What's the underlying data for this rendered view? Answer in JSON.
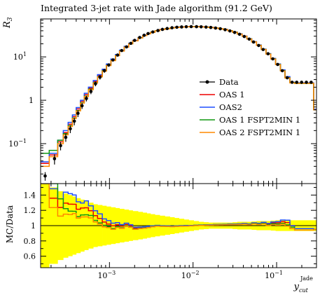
{
  "chart_data": {
    "type": "line",
    "title": "Integrated 3-jet rate with Jade algorithm (91.2 GeV)",
    "xlabel_main": "y",
    "xlabel_sub": "cut",
    "xlabel_sup": "Jade",
    "ylabel_top": "R",
    "ylabel_top_sub": "3",
    "ylabel_ratio": "MC/Data",
    "x_scale": "log",
    "y_scale_top": "log",
    "xlim": [
      0.00015,
      0.3
    ],
    "ylim_top": [
      0.012,
      75
    ],
    "ylim_ratio": [
      0.45,
      1.55
    ],
    "x_ticks": [
      {
        "value": 0.001,
        "base": "10",
        "exp": "−3"
      },
      {
        "value": 0.01,
        "base": "10",
        "exp": "−2"
      },
      {
        "value": 0.1,
        "base": "10",
        "exp": "−1"
      }
    ],
    "y_ticks_top": [
      {
        "value": 0.1,
        "base": "10",
        "exp": "−1"
      },
      {
        "value": 1,
        "base": "1",
        "exp": ""
      },
      {
        "value": 10,
        "base": "10",
        "exp": "1"
      }
    ],
    "y_ticks_ratio": [
      {
        "value": 0.6,
        "label": "0.6"
      },
      {
        "value": 0.8,
        "label": "0.8"
      },
      {
        "value": 1.0,
        "label": "1"
      },
      {
        "value": 1.2,
        "label": "1.2"
      },
      {
        "value": 1.4,
        "label": "1.4"
      }
    ],
    "legend_position": "right-middle",
    "data_series": {
      "name": "Data",
      "color": "#000000",
      "x": [
        0.00017,
        0.00022,
        0.00026,
        0.0003,
        0.00034,
        0.00038,
        0.00042,
        0.00047,
        0.00053,
        0.0006,
        0.00068,
        0.00077,
        0.00087,
        0.00098,
        0.0011,
        0.00125,
        0.0014,
        0.0016,
        0.0018,
        0.002,
        0.0023,
        0.0026,
        0.0029,
        0.0033,
        0.0038,
        0.0043,
        0.0049,
        0.0056,
        0.0064,
        0.0073,
        0.0083,
        0.0095,
        0.011,
        0.0125,
        0.0143,
        0.0163,
        0.0186,
        0.0212,
        0.0242,
        0.0276,
        0.0315,
        0.036,
        0.041,
        0.047,
        0.053,
        0.061,
        0.069,
        0.079,
        0.09,
        0.103,
        0.117,
        0.134,
        0.153,
        0.174,
        0.199,
        0.227,
        0.259
      ],
      "y": [
        0.018,
        0.045,
        0.09,
        0.14,
        0.22,
        0.33,
        0.5,
        0.75,
        1.1,
        1.6,
        2.4,
        3.4,
        4.8,
        6.5,
        8.5,
        11,
        14,
        17,
        20.5,
        24,
        28,
        31.5,
        34.5,
        37.5,
        40.5,
        43,
        45,
        47,
        48.2,
        49,
        49.5,
        49.8,
        49.7,
        49.3,
        48.6,
        47.6,
        46.2,
        44.5,
        42.3,
        39.6,
        36.6,
        33.2,
        29.5,
        25.7,
        22,
        18.3,
        14.8,
        11.8,
        9,
        6.7,
        4.8,
        3.3,
        2.6,
        2.6,
        2.6,
        2.6,
        2.6
      ],
      "yerr": [
        0.004,
        0.012,
        0.02,
        0.03,
        0.045,
        0.065,
        0.09,
        0.12,
        0.16,
        0.22,
        0.3,
        0.4,
        0.5,
        0.6,
        0.7,
        0.8,
        0.9,
        1.0,
        1.1,
        1.2,
        1.3,
        1.3,
        1.4,
        1.4,
        1.4,
        1.4,
        1.4,
        1.3,
        1.3,
        1.2,
        1.2,
        1.2,
        1.2,
        1.2,
        1.2,
        1.2,
        1.2,
        1.2,
        1.2,
        1.1,
        1.1,
        1.0,
        1.0,
        0.9,
        0.8,
        0.7,
        0.6,
        0.5,
        0.4,
        0.35,
        0.3,
        0.25,
        0.2,
        0.2,
        0.2,
        0.2,
        0.2
      ]
    },
    "series": [
      {
        "name": "OAS 1",
        "color": "#ee0000",
        "edges": [
          0.00015,
          0.00019,
          0.00024,
          0.00028,
          0.00032,
          0.00036,
          0.0004,
          0.00045,
          0.0005,
          0.00056,
          0.00064,
          0.00072,
          0.00082,
          0.00092,
          0.00104,
          0.00118,
          0.00132,
          0.0015,
          0.0017,
          0.0019,
          0.0022,
          0.0025,
          0.0028,
          0.0031,
          0.0035,
          0.004,
          0.0046,
          0.0053,
          0.006,
          0.0068,
          0.0078,
          0.0089,
          0.0102,
          0.0117,
          0.0134,
          0.0153,
          0.0175,
          0.02,
          0.0228,
          0.026,
          0.0297,
          0.0339,
          0.0387,
          0.0441,
          0.0503,
          0.0574,
          0.0655,
          0.0747,
          0.0852,
          0.0972,
          0.111,
          0.126,
          0.144,
          0.164,
          0.187,
          0.213,
          0.243,
          0.277,
          0.3
        ],
        "y": [
          0.035,
          0.055,
          0.11,
          0.18,
          0.28,
          0.42,
          0.63,
          0.95,
          1.35,
          1.9,
          2.7,
          3.7,
          5.0,
          6.6,
          8.6,
          11.1,
          14,
          17.2,
          20.4,
          23.8,
          27.8,
          31.3,
          34.4,
          37.3,
          40.2,
          42.8,
          44.9,
          46.7,
          48,
          48.9,
          49.5,
          49.8,
          49.9,
          49.6,
          49,
          48,
          46.7,
          45,
          42.8,
          40.2,
          37.1,
          33.7,
          30,
          26.1,
          22.3,
          18.6,
          15,
          11.8,
          9.1,
          6.8,
          4.9,
          3.4,
          2.6,
          2.5,
          2.5,
          2.5,
          2.5,
          0.62
        ]
      },
      {
        "name": "OAS2",
        "color": "#1f4fff",
        "edges": [
          0.00015,
          0.00019,
          0.00024,
          0.00028,
          0.00032,
          0.00036,
          0.0004,
          0.00045,
          0.0005,
          0.00056,
          0.00064,
          0.00072,
          0.00082,
          0.00092,
          0.00104,
          0.00118,
          0.00132,
          0.0015,
          0.0017,
          0.0019,
          0.0022,
          0.0025,
          0.0028,
          0.0031,
          0.0035,
          0.004,
          0.0046,
          0.0053,
          0.006,
          0.0068,
          0.0078,
          0.0089,
          0.0102,
          0.0117,
          0.0134,
          0.0153,
          0.0175,
          0.02,
          0.0228,
          0.026,
          0.0297,
          0.0339,
          0.0387,
          0.0441,
          0.0503,
          0.0574,
          0.0655,
          0.0747,
          0.0852,
          0.0972,
          0.111,
          0.126,
          0.144,
          0.164,
          0.187,
          0.213,
          0.243,
          0.277,
          0.3
        ],
        "y": [
          0.038,
          0.06,
          0.12,
          0.2,
          0.31,
          0.46,
          0.68,
          1.0,
          1.45,
          2.0,
          2.85,
          3.9,
          5.2,
          6.9,
          8.9,
          11.4,
          14.3,
          17.5,
          20.7,
          24.1,
          28,
          31.5,
          34.6,
          37.4,
          40.3,
          42.9,
          45,
          46.8,
          48.1,
          49,
          49.6,
          49.9,
          50,
          49.7,
          49.1,
          48.1,
          46.8,
          45.1,
          42.9,
          40.3,
          37.2,
          33.8,
          30.1,
          26.2,
          22.4,
          18.7,
          15.1,
          11.9,
          9.2,
          6.9,
          5.0,
          3.5,
          2.6,
          2.5,
          2.5,
          2.5,
          2.5,
          0.62
        ]
      },
      {
        "name": "OAS 1 FSPT2MIN 1",
        "color": "#119911",
        "edges": [
          0.00015,
          0.00019,
          0.00024,
          0.00028,
          0.00032,
          0.00036,
          0.0004,
          0.00045,
          0.0005,
          0.00056,
          0.00064,
          0.00072,
          0.00082,
          0.00092,
          0.00104,
          0.00118,
          0.00132,
          0.0015,
          0.0017,
          0.0019,
          0.0022,
          0.0025,
          0.0028,
          0.0031,
          0.0035,
          0.004,
          0.0046,
          0.0053,
          0.006,
          0.0068,
          0.0078,
          0.0089,
          0.0102,
          0.0117,
          0.0134,
          0.0153,
          0.0175,
          0.02,
          0.0228,
          0.026,
          0.0297,
          0.0339,
          0.0387,
          0.0441,
          0.0503,
          0.0574,
          0.0655,
          0.0747,
          0.0852,
          0.0972,
          0.111,
          0.126,
          0.144,
          0.164,
          0.187,
          0.213,
          0.243,
          0.277,
          0.3
        ],
        "y": [
          0.06,
          0.07,
          0.12,
          0.17,
          0.26,
          0.39,
          0.58,
          0.88,
          1.25,
          1.8,
          2.55,
          3.5,
          4.8,
          6.4,
          8.3,
          10.8,
          13.7,
          16.9,
          20.1,
          23.5,
          27.5,
          31,
          34.1,
          37,
          40,
          42.6,
          44.7,
          46.5,
          47.8,
          48.7,
          49.3,
          49.7,
          49.8,
          49.5,
          48.9,
          47.9,
          46.6,
          44.9,
          42.7,
          40.1,
          37,
          33.6,
          29.9,
          26,
          22.2,
          18.5,
          14.9,
          11.7,
          9.0,
          6.7,
          4.8,
          3.3,
          2.55,
          2.45,
          2.45,
          2.45,
          2.45,
          0.6
        ]
      },
      {
        "name": "OAS 2 FSPT2MIN 1",
        "color": "#ff8800",
        "edges": [
          0.00015,
          0.00019,
          0.00024,
          0.00028,
          0.00032,
          0.00036,
          0.0004,
          0.00045,
          0.0005,
          0.00056,
          0.00064,
          0.00072,
          0.00082,
          0.00092,
          0.00104,
          0.00118,
          0.00132,
          0.0015,
          0.0017,
          0.0019,
          0.0022,
          0.0025,
          0.0028,
          0.0031,
          0.0035,
          0.004,
          0.0046,
          0.0053,
          0.006,
          0.0068,
          0.0078,
          0.0089,
          0.0102,
          0.0117,
          0.0134,
          0.0153,
          0.0175,
          0.02,
          0.0228,
          0.026,
          0.0297,
          0.0339,
          0.0387,
          0.0441,
          0.0503,
          0.0574,
          0.0655,
          0.0747,
          0.0852,
          0.0972,
          0.111,
          0.126,
          0.144,
          0.164,
          0.187,
          0.213,
          0.243,
          0.277,
          0.3
        ],
        "y": [
          0.03,
          0.05,
          0.1,
          0.16,
          0.25,
          0.38,
          0.57,
          0.86,
          1.22,
          1.75,
          2.5,
          3.45,
          4.7,
          6.3,
          8.2,
          10.7,
          13.6,
          16.8,
          20,
          23.4,
          27.4,
          30.9,
          34,
          36.9,
          39.9,
          42.5,
          44.6,
          46.4,
          47.7,
          48.6,
          49.2,
          49.6,
          49.7,
          49.4,
          48.8,
          47.8,
          46.5,
          44.8,
          42.6,
          40,
          36.9,
          33.5,
          29.8,
          25.9,
          22.1,
          18.4,
          14.8,
          11.6,
          8.9,
          6.6,
          4.75,
          3.25,
          2.5,
          2.45,
          2.45,
          2.45,
          2.45,
          0.6
        ]
      }
    ],
    "ratio_band": {
      "color": "#ffff00",
      "edges": [
        0.00015,
        0.00019,
        0.00024,
        0.00028,
        0.00032,
        0.00036,
        0.0004,
        0.00045,
        0.0005,
        0.00056,
        0.00064,
        0.00072,
        0.00082,
        0.00092,
        0.00104,
        0.00118,
        0.00132,
        0.0015,
        0.0017,
        0.0019,
        0.0022,
        0.0025,
        0.0028,
        0.0031,
        0.0035,
        0.004,
        0.0046,
        0.0053,
        0.006,
        0.0068,
        0.0078,
        0.0089,
        0.0102,
        0.0117,
        0.0134,
        0.0153,
        0.0175,
        0.02,
        0.0228,
        0.026,
        0.0297,
        0.0339,
        0.0387,
        0.0441,
        0.0503,
        0.0574,
        0.0655,
        0.0747,
        0.0852,
        0.0972,
        0.111,
        0.126,
        0.144,
        0.164,
        0.187,
        0.213,
        0.243,
        0.277,
        0.3
      ],
      "half_width": [
        0.55,
        0.5,
        0.45,
        0.42,
        0.4,
        0.38,
        0.36,
        0.34,
        0.32,
        0.3,
        0.28,
        0.27,
        0.26,
        0.25,
        0.24,
        0.23,
        0.22,
        0.21,
        0.2,
        0.19,
        0.18,
        0.17,
        0.16,
        0.15,
        0.14,
        0.13,
        0.12,
        0.11,
        0.1,
        0.09,
        0.08,
        0.07,
        0.06,
        0.05,
        0.045,
        0.04,
        0.04,
        0.04,
        0.04,
        0.04,
        0.045,
        0.05,
        0.05,
        0.05,
        0.055,
        0.06,
        0.06,
        0.06,
        0.065,
        0.07,
        0.07,
        0.07,
        0.07,
        0.07,
        0.07,
        0.07,
        0.07,
        0.07
      ]
    }
  }
}
